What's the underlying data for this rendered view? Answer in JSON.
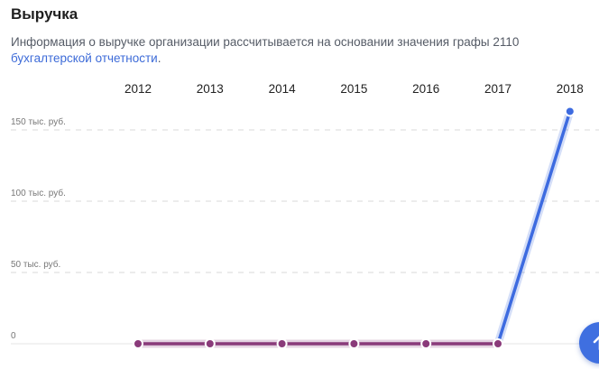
{
  "header": {
    "title": "Выручка",
    "description_text": "Информация о выручке организации рассчитывается на основании значения графы 2110 ",
    "description_link": "бухгалтерской отчетности",
    "description_end": "."
  },
  "chart_data": {
    "type": "line",
    "categories": [
      "2012",
      "2013",
      "2014",
      "2015",
      "2016",
      "2017",
      "2018"
    ],
    "y_ticks": [
      {
        "value": 0,
        "label": "0"
      },
      {
        "value": 50000,
        "label": "50 тыс. руб."
      },
      {
        "value": 100000,
        "label": "100 тыс. руб."
      },
      {
        "value": 150000,
        "label": "150 тыс. руб."
      }
    ],
    "values": [
      0,
      0,
      0,
      0,
      0,
      0,
      163000
    ],
    "ylim": [
      0,
      170000
    ],
    "grid": true,
    "colors": {
      "flat_line": "#8a3a7a",
      "rise_line": "#3d6be0",
      "point_fill": "#8a3a7a",
      "point_last": "#3d6be0",
      "grid": "#d8d8d8",
      "axis_text": "#777777",
      "category_text": "#222222"
    }
  },
  "scroll_button": {
    "icon": "arrow-up-icon"
  }
}
